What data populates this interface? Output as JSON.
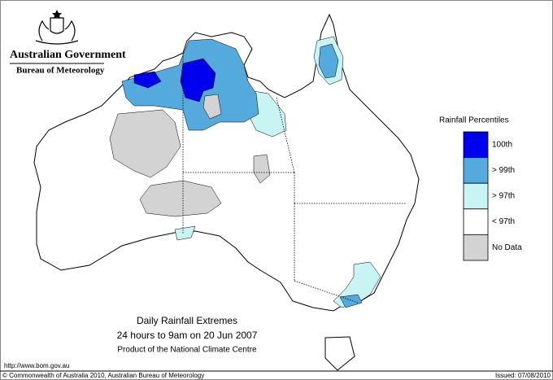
{
  "header": {
    "government": "Australian Government",
    "agency": "Bureau of Meteorology"
  },
  "legend": {
    "title": "Rainfall Percentiles",
    "items": [
      {
        "label": "100th",
        "color": "#0000ee"
      },
      {
        "label": "> 99th",
        "color": "#55aadd"
      },
      {
        "label": "> 97th",
        "color": "#c8f4f4"
      },
      {
        "label": "< 97th",
        "color": "#ffffff"
      },
      {
        "label": "No Data",
        "color": "#d3d3d3"
      }
    ]
  },
  "caption": {
    "title": "Daily Rainfall Extremes",
    "period": "24 hours to 9am on 20 Jun 2007",
    "credit": "Product of the National Climate Centre"
  },
  "footer": {
    "url": "http://www.bom.gov.au",
    "copyright": "© Commonwealth of Australia 2010, Australian Bureau of Meteorology",
    "issued": "Issued: 07/08/2010"
  }
}
